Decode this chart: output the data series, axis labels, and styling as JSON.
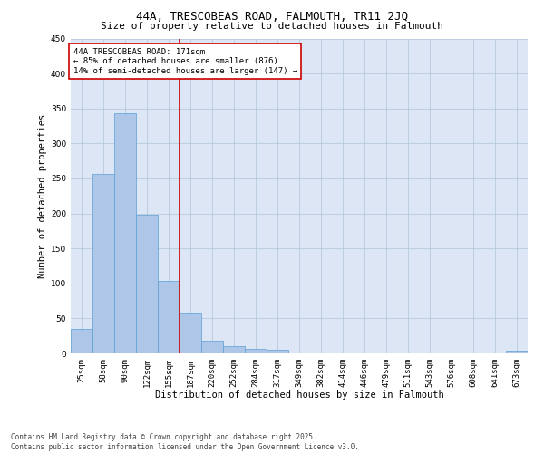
{
  "title_line1": "44A, TRESCOBEAS ROAD, FALMOUTH, TR11 2JQ",
  "title_line2": "Size of property relative to detached houses in Falmouth",
  "xlabel": "Distribution of detached houses by size in Falmouth",
  "ylabel": "Number of detached properties",
  "categories": [
    "25sqm",
    "58sqm",
    "90sqm",
    "122sqm",
    "155sqm",
    "187sqm",
    "220sqm",
    "252sqm",
    "284sqm",
    "317sqm",
    "349sqm",
    "382sqm",
    "414sqm",
    "446sqm",
    "479sqm",
    "511sqm",
    "543sqm",
    "576sqm",
    "608sqm",
    "641sqm",
    "673sqm"
  ],
  "values": [
    35,
    257,
    343,
    198,
    104,
    57,
    18,
    10,
    7,
    5,
    0,
    0,
    0,
    0,
    0,
    0,
    0,
    0,
    0,
    0,
    4
  ],
  "bar_color": "#aec6e8",
  "bar_edge_color": "#5a9fd4",
  "grid_color": "#b0c4d8",
  "background_color": "#dce6f5",
  "vline_x": 4.5,
  "vline_color": "#cc0000",
  "annotation_text": "44A TRESCOBEAS ROAD: 171sqm\n← 85% of detached houses are smaller (876)\n14% of semi-detached houses are larger (147) →",
  "annotation_box_color": "#cc0000",
  "ylim": [
    0,
    450
  ],
  "yticks": [
    0,
    50,
    100,
    150,
    200,
    250,
    300,
    350,
    400,
    450
  ],
  "footer_line1": "Contains HM Land Registry data © Crown copyright and database right 2025.",
  "footer_line2": "Contains public sector information licensed under the Open Government Licence v3.0.",
  "title_fontsize": 9,
  "subtitle_fontsize": 8,
  "axis_label_fontsize": 7.5,
  "tick_fontsize": 6.5,
  "annotation_fontsize": 6.5,
  "footer_fontsize": 5.5
}
